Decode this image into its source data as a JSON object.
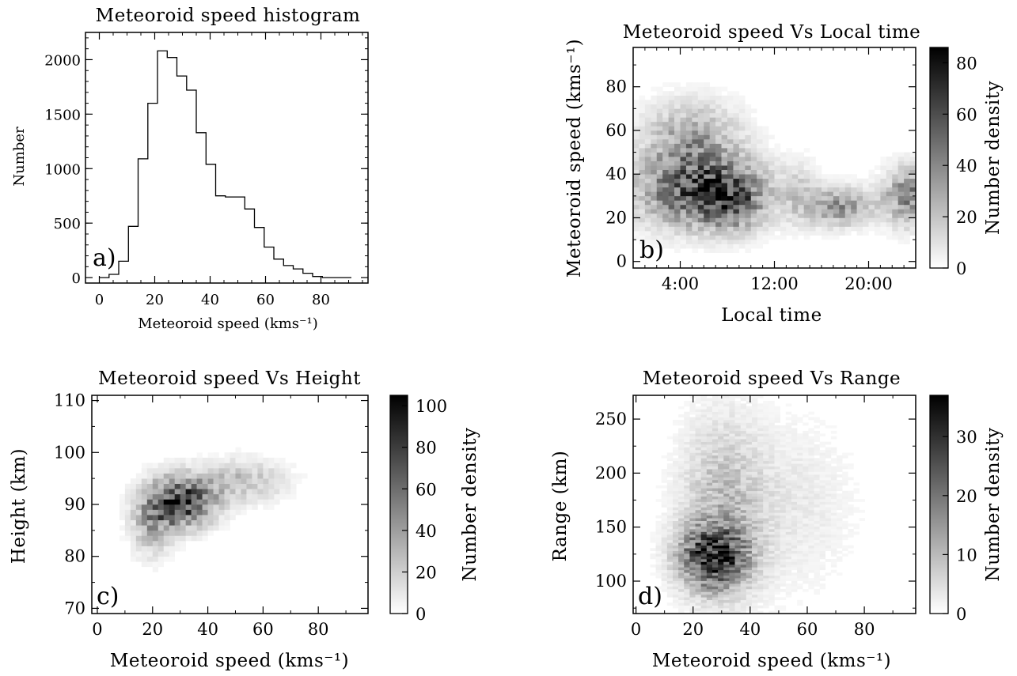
{
  "chart_data": [
    {
      "type": "bar",
      "panel_label": "a)",
      "title": "Meteoroid speed histogram",
      "xlabel": "Meteoroid speed (kms⁻¹)",
      "ylabel": "Number",
      "xlim": [
        -5,
        97
      ],
      "ylim": [
        -50,
        2250
      ],
      "xticks": [
        "0",
        "20",
        "40",
        "60",
        "80"
      ],
      "yticks": [
        "0",
        "500",
        "1000",
        "1500",
        "2000"
      ],
      "bin_width": 3.5,
      "bin_edges_start": 0,
      "values": [
        0,
        30,
        150,
        470,
        1090,
        1600,
        2080,
        2020,
        1850,
        1720,
        1330,
        1040,
        750,
        740,
        740,
        630,
        460,
        280,
        170,
        110,
        80,
        40,
        10,
        0,
        0,
        0
      ]
    },
    {
      "type": "heatmap",
      "panel_label": "b)",
      "title": "Meteoroid speed Vs Local time",
      "xlabel": "Local time",
      "ylabel": "Meteoroid speed (kms⁻¹)",
      "xlim": [
        0,
        24
      ],
      "ylim": [
        -3,
        98
      ],
      "xticks": [
        {
          "v": 4,
          "label": "4:00"
        },
        {
          "v": 12,
          "label": "12:00"
        },
        {
          "v": 20,
          "label": "20:00"
        }
      ],
      "yticks": [
        "0",
        "20",
        "40",
        "60",
        "80"
      ],
      "colorbar_label": "Number density",
      "colorbar_range": [
        0,
        86
      ],
      "colorbar_ticks": [
        "0",
        "20",
        "40",
        "60",
        "80"
      ],
      "colormap": "white-to-black",
      "density_components": [
        {
          "cx": 5.5,
          "cy": 32,
          "sx": 3.5,
          "sy": 11,
          "amp": 55
        },
        {
          "cx": 5.0,
          "cy": 55,
          "sx": 2.8,
          "sy": 12,
          "amp": 30
        },
        {
          "cx": 8.5,
          "cy": 28,
          "sx": 1.8,
          "sy": 9,
          "amp": 35
        },
        {
          "cx": 17.5,
          "cy": 25,
          "sx": 2.0,
          "sy": 6,
          "amp": 35
        },
        {
          "cx": 23.5,
          "cy": 30,
          "sx": 1.5,
          "sy": 9,
          "amp": 40
        },
        {
          "cx": 14.0,
          "cy": 32,
          "sx": 1.2,
          "sy": 10,
          "amp": 12
        }
      ]
    },
    {
      "type": "heatmap",
      "panel_label": "c)",
      "title": "Meteoroid speed Vs Height",
      "xlabel": "Meteoroid speed (kms⁻¹)",
      "ylabel": "Height (km)",
      "xlim": [
        -2,
        98
      ],
      "ylim": [
        69,
        111
      ],
      "xticks": [
        "0",
        "20",
        "40",
        "60",
        "80"
      ],
      "yticks": [
        "70",
        "80",
        "90",
        "100",
        "110"
      ],
      "colorbar_label": "Number density",
      "colorbar_range": [
        0,
        105
      ],
      "colorbar_ticks": [
        "0",
        "20",
        "40",
        "60",
        "80",
        "100"
      ],
      "colormap": "white-to-black",
      "density_components": [
        {
          "cx": 30,
          "cy": 90.5,
          "sx": 8,
          "sy": 3.2,
          "amp": 85
        },
        {
          "cx": 52,
          "cy": 94.5,
          "sx": 11,
          "sy": 2.8,
          "amp": 25
        },
        {
          "cx": 20,
          "cy": 86,
          "sx": 5,
          "sy": 4,
          "amp": 30
        }
      ]
    },
    {
      "type": "heatmap",
      "panel_label": "d)",
      "title": "Meteoroid speed Vs Range",
      "xlabel": "Meteoroid speed (kms⁻¹)",
      "ylabel": "Range (km)",
      "xlim": [
        -1,
        98
      ],
      "ylim": [
        70,
        272
      ],
      "xticks": [
        "0",
        "20",
        "40",
        "60",
        "80"
      ],
      "yticks": [
        "100",
        "150",
        "200",
        "250"
      ],
      "colorbar_label": "Number density",
      "colorbar_range": [
        0,
        37
      ],
      "colorbar_ticks": [
        "0",
        "10",
        "20",
        "30"
      ],
      "colormap": "white-to-black",
      "density_components": [
        {
          "cx": 27,
          "cy": 122,
          "sx": 8,
          "sy": 20,
          "amp": 28
        },
        {
          "cx": 30,
          "cy": 170,
          "sx": 10,
          "sy": 55,
          "amp": 9
        },
        {
          "cx": 55,
          "cy": 170,
          "sx": 15,
          "sy": 55,
          "amp": 3
        }
      ]
    }
  ]
}
